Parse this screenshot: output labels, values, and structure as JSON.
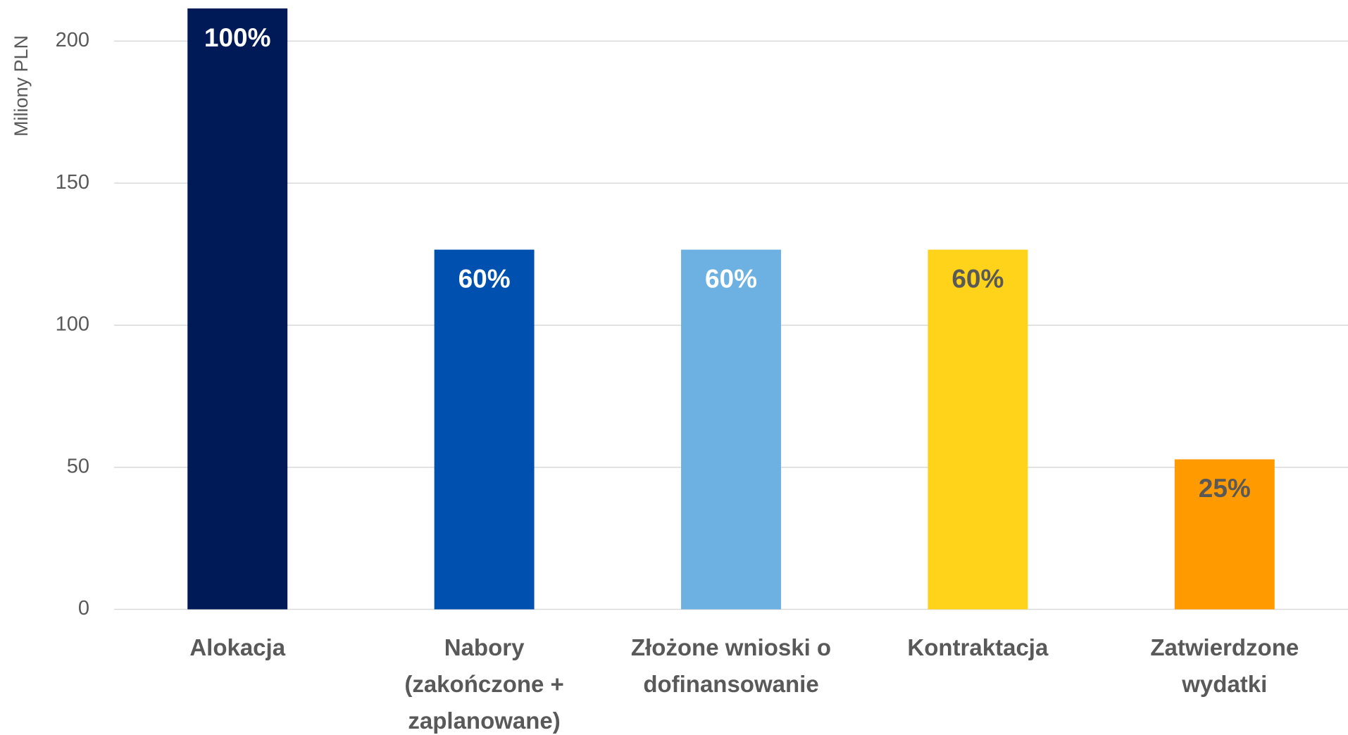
{
  "chart_data": {
    "type": "bar",
    "y_axis_label": "Miliony PLN",
    "categories": [
      "Alokacja",
      "Nabory\n(zakończone +\nzaplanowane)",
      "Złożone wnioski o\ndofinansowanie",
      "Kontraktacja",
      "Zatwierdzone\nwydatki"
    ],
    "values": [
      211.5,
      126.6,
      126.6,
      126.6,
      52.8
    ],
    "share_labels": [
      "100%",
      "60%",
      "60%",
      "60%",
      "25%"
    ],
    "colors": [
      "#001a57",
      "#0050b0",
      "#6db1e2",
      "#fed319",
      "#ff9b00"
    ],
    "label_colors": [
      "#ffffff",
      "#ffffff",
      "#ffffff",
      "#595959",
      "#595959"
    ],
    "ylim": [
      0,
      211.5
    ],
    "yticks": [
      0,
      50,
      100,
      150,
      200
    ],
    "grid": true
  }
}
